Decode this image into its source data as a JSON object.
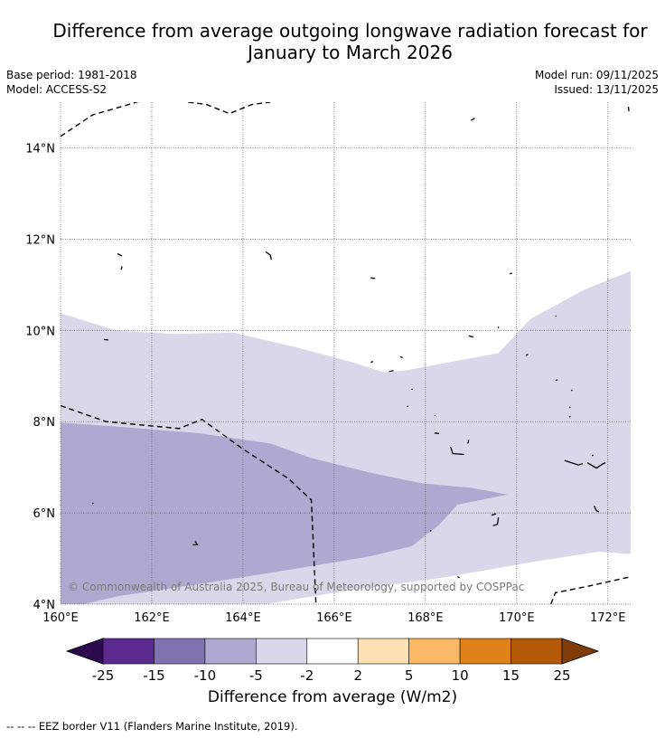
{
  "title_line1": "Difference from average outgoing longwave radiation forecast for",
  "title_line2": "January to March 2026",
  "base_period": "Base period: 1981-2018",
  "model": "Model: ACCESS-S2",
  "model_run": "Model run: 09/11/2025",
  "issued": "Issued: 13/11/2025",
  "copyright": "© Commonwealth of Australia 2025, Bureau of Meteorology, supported by COSPPac",
  "footnote": "--  --  -- EEZ border V11 (Flanders Marine Institute, 2019).",
  "colorbar": {
    "title": "Difference from average (W/m2)",
    "ticks": [
      "-25",
      "-15",
      "-10",
      "-5",
      "-2",
      "2",
      "5",
      "10",
      "15",
      "25"
    ],
    "colors": [
      "#2d0a4e",
      "#5b2a8e",
      "#7f72b0",
      "#afa8d0",
      "#d8d8ea",
      "#ffffff",
      "#fde0b4",
      "#fcb965",
      "#e0821a",
      "#b35806",
      "#7f3b08"
    ]
  },
  "chart_data": {
    "type": "map",
    "x_axis": {
      "min": 160,
      "max": 172.5,
      "ticks": [
        160,
        162,
        164,
        166,
        168,
        170,
        172
      ],
      "tick_labels": [
        "160°E",
        "162°E",
        "164°E",
        "166°E",
        "168°E",
        "170°E",
        "172°E"
      ]
    },
    "y_axis": {
      "min": 4,
      "max": 15,
      "ticks": [
        4,
        6,
        8,
        10,
        12,
        14
      ],
      "tick_labels": [
        "4°N",
        "6°N",
        "8°N",
        "10°N",
        "12°N",
        "14°N"
      ]
    },
    "anomaly_regions": [
      {
        "category": "-5 to -2",
        "color": "#d8d8ea",
        "polygon": [
          [
            160,
            10.38
          ],
          [
            161.2,
            10.0
          ],
          [
            162.5,
            9.92
          ],
          [
            163.8,
            9.95
          ],
          [
            165.2,
            9.62
          ],
          [
            166.4,
            9.3
          ],
          [
            167.1,
            9.08
          ],
          [
            167.6,
            9.13
          ],
          [
            168.5,
            9.3
          ],
          [
            169.6,
            9.5
          ],
          [
            170.3,
            10.25
          ],
          [
            171.5,
            10.9
          ],
          [
            172.5,
            11.3
          ],
          [
            172.5,
            5.1
          ],
          [
            171.8,
            5.15
          ],
          [
            170.5,
            4.95
          ],
          [
            168.5,
            4.6
          ],
          [
            166,
            4.25
          ],
          [
            164.5,
            4.0
          ],
          [
            160,
            4.0
          ]
        ]
      },
      {
        "category": "-10 to -5",
        "color": "#afa8d0",
        "polygon": [
          [
            160,
            7.98
          ],
          [
            161.5,
            7.87
          ],
          [
            163,
            7.75
          ],
          [
            164.6,
            7.52
          ],
          [
            165.5,
            7.2
          ],
          [
            166.8,
            6.88
          ],
          [
            167.9,
            6.65
          ],
          [
            169.0,
            6.55
          ],
          [
            169.8,
            6.4
          ],
          [
            168.7,
            6.18
          ],
          [
            168.3,
            5.74
          ],
          [
            167.7,
            5.27
          ],
          [
            166.8,
            5.05
          ],
          [
            165.3,
            4.8
          ],
          [
            163.3,
            4.48
          ],
          [
            161.3,
            4.18
          ],
          [
            160.5,
            4.0
          ],
          [
            160,
            4.0
          ]
        ]
      }
    ],
    "eez_border_lines": [
      [
        [
          160,
          14.25
        ],
        [
          160.7,
          14.72
        ],
        [
          161.5,
          14.95
        ],
        [
          162,
          15.1
        ]
      ],
      [
        [
          162.8,
          15.0
        ],
        [
          163.2,
          14.95
        ],
        [
          163.7,
          14.75
        ],
        [
          164.2,
          14.95
        ],
        [
          164.6,
          15.0
        ]
      ],
      [
        [
          160,
          8.35
        ],
        [
          161,
          8.0
        ],
        [
          162.6,
          7.85
        ],
        [
          163.1,
          8.05
        ],
        [
          164,
          7.4
        ],
        [
          165,
          6.75
        ],
        [
          165.5,
          6.28
        ],
        [
          165.6,
          4.0
        ]
      ],
      [
        [
          170.75,
          4.0
        ],
        [
          170.85,
          4.25
        ],
        [
          171.6,
          4.4
        ],
        [
          172.5,
          4.6
        ]
      ]
    ],
    "islands": [
      [
        [
          169.0,
          14.6
        ],
        [
          169.08,
          14.65
        ]
      ],
      [
        [
          172.45,
          14.9
        ],
        [
          172.46,
          14.8
        ]
      ],
      [
        [
          161.25,
          11.68
        ],
        [
          161.35,
          11.63
        ]
      ],
      [
        [
          161.35,
          11.4
        ],
        [
          161.33,
          11.33
        ]
      ],
      [
        [
          164.5,
          11.72
        ],
        [
          164.6,
          11.65
        ],
        [
          164.62,
          11.55
        ]
      ],
      [
        [
          166.8,
          11.15
        ],
        [
          166.9,
          11.14
        ]
      ],
      [
        [
          169.85,
          11.24
        ],
        [
          169.9,
          11.25
        ]
      ],
      [
        [
          160.95,
          9.8
        ],
        [
          161.05,
          9.79
        ]
      ],
      [
        [
          168.95,
          9.88
        ],
        [
          169.05,
          9.85
        ]
      ],
      [
        [
          169.6,
          10.05
        ],
        [
          169.6,
          10.08
        ]
      ],
      [
        [
          170.2,
          9.45
        ],
        [
          170.25,
          9.47
        ]
      ],
      [
        [
          170.85,
          10.3
        ],
        [
          170.87,
          10.32
        ]
      ],
      [
        [
          166.8,
          9.3
        ],
        [
          166.85,
          9.32
        ]
      ],
      [
        [
          167.45,
          9.42
        ],
        [
          167.5,
          9.4
        ]
      ],
      [
        [
          167.7,
          8.72
        ],
        [
          167.72,
          8.7
        ]
      ],
      [
        [
          167.2,
          9.1
        ],
        [
          167.3,
          9.12
        ]
      ],
      [
        [
          167.6,
          8.34
        ],
        [
          167.62,
          8.33
        ]
      ],
      [
        [
          168.2,
          8.12
        ],
        [
          168.22,
          8.14
        ]
      ],
      [
        [
          168.2,
          7.75
        ],
        [
          168.3,
          7.74
        ]
      ],
      [
        [
          168.55,
          7.45
        ],
        [
          168.6,
          7.3
        ],
        [
          168.85,
          7.28
        ]
      ],
      [
        [
          168.95,
          7.6
        ],
        [
          168.93,
          7.52
        ]
      ],
      [
        [
          169.45,
          5.95
        ],
        [
          169.55,
          5.98
        ]
      ],
      [
        [
          169.6,
          5.9
        ],
        [
          169.58,
          5.75
        ],
        [
          169.48,
          5.72
        ]
      ],
      [
        [
          170.85,
          8.9
        ],
        [
          170.9,
          8.92
        ]
      ],
      [
        [
          171.2,
          8.68
        ],
        [
          171.22,
          8.7
        ]
      ],
      [
        [
          171.15,
          8.32
        ],
        [
          171.18,
          8.3
        ]
      ],
      [
        [
          171.15,
          8.1
        ],
        [
          171.18,
          8.12
        ]
      ],
      [
        [
          171.05,
          7.15
        ],
        [
          171.35,
          7.05
        ],
        [
          171.45,
          7.08
        ]
      ],
      [
        [
          171.55,
          7.1
        ],
        [
          171.75,
          6.98
        ],
        [
          171.9,
          7.08
        ],
        [
          171.95,
          7.1
        ]
      ],
      [
        [
          171.65,
          7.25
        ],
        [
          171.68,
          7.27
        ]
      ],
      [
        [
          171.7,
          6.15
        ],
        [
          171.75,
          6.05
        ],
        [
          171.8,
          6.02
        ]
      ],
      [
        [
          168.1,
          5.62
        ],
        [
          168.13,
          5.6
        ]
      ],
      [
        [
          168.7,
          4.6
        ],
        [
          168.75,
          4.58
        ]
      ],
      [
        [
          160.7,
          6.2
        ],
        [
          160.72,
          6.22
        ]
      ],
      [
        [
          162.9,
          5.3
        ],
        [
          163.0,
          5.3
        ],
        [
          162.95,
          5.38
        ]
      ]
    ]
  }
}
